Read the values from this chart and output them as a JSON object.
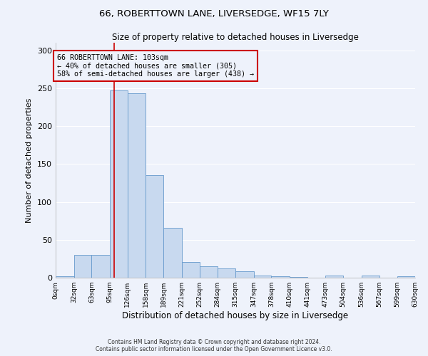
{
  "title": "66, ROBERTTOWN LANE, LIVERSEDGE, WF15 7LY",
  "subtitle": "Size of property relative to detached houses in Liversedge",
  "xlabel": "Distribution of detached houses by size in Liversedge",
  "ylabel": "Number of detached properties",
  "bar_color": "#c8d9ef",
  "bar_edge_color": "#6699cc",
  "background_color": "#eef2fb",
  "grid_color": "#ffffff",
  "annotation_box_color": "#cc0000",
  "marker_line_color": "#cc0000",
  "annotation_text": "66 ROBERTTOWN LANE: 103sqm\n← 40% of detached houses are smaller (305)\n58% of semi-detached houses are larger (438) →",
  "property_size": 103,
  "bin_edges": [
    0,
    32,
    63,
    95,
    126,
    158,
    189,
    221,
    252,
    284,
    315,
    347,
    378,
    410,
    441,
    473,
    504,
    536,
    567,
    599,
    630
  ],
  "bar_heights": [
    2,
    30,
    30,
    247,
    243,
    135,
    66,
    21,
    15,
    12,
    8,
    3,
    2,
    1,
    0,
    3,
    0,
    3,
    0,
    2
  ],
  "tick_labels": [
    "0sqm",
    "32sqm",
    "63sqm",
    "95sqm",
    "126sqm",
    "158sqm",
    "189sqm",
    "221sqm",
    "252sqm",
    "284sqm",
    "315sqm",
    "347sqm",
    "378sqm",
    "410sqm",
    "441sqm",
    "473sqm",
    "504sqm",
    "536sqm",
    "567sqm",
    "599sqm",
    "630sqm"
  ],
  "ylim": [
    0,
    310
  ],
  "yticks": [
    0,
    50,
    100,
    150,
    200,
    250,
    300
  ],
  "footer_line1": "Contains HM Land Registry data © Crown copyright and database right 2024.",
  "footer_line2": "Contains public sector information licensed under the Open Government Licence v3.0."
}
